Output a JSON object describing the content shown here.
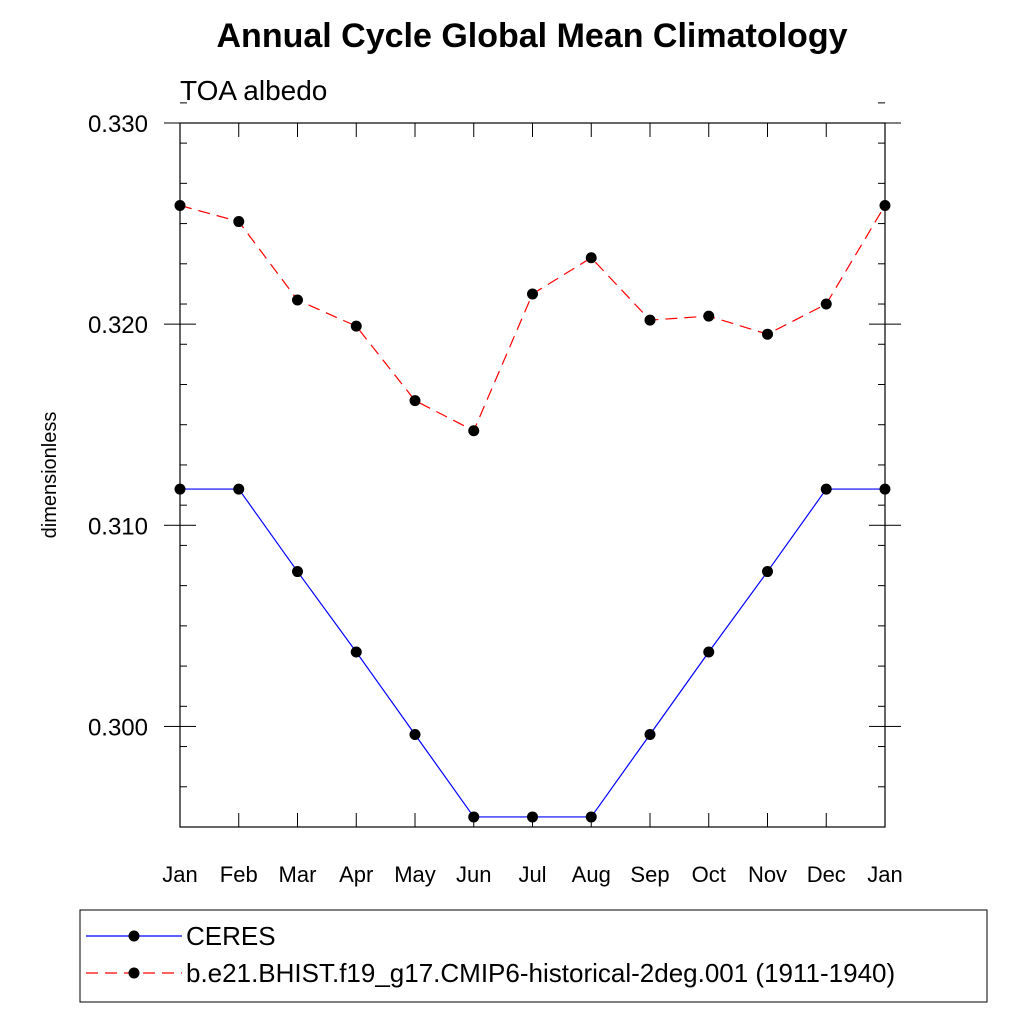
{
  "chart_data": {
    "type": "line",
    "title": "Annual Cycle Global Mean Climatology",
    "subtitle": "TOA albedo",
    "xlabel": "",
    "ylabel": "dimensionless",
    "categories": [
      "Jan",
      "Feb",
      "Mar",
      "Apr",
      "May",
      "Jun",
      "Jul",
      "Aug",
      "Sep",
      "Oct",
      "Nov",
      "Dec",
      "Jan"
    ],
    "ylim": [
      0.295,
      0.33
    ],
    "yticks": [
      {
        "value": 0.3,
        "label": "0.300"
      },
      {
        "value": 0.31,
        "label": "0.310"
      },
      {
        "value": 0.32,
        "label": "0.320"
      },
      {
        "value": 0.33,
        "label": "0.330"
      }
    ],
    "y_minor_step": 0.002,
    "grid": false,
    "legend_position": "bottom",
    "series": [
      {
        "name": "CERES",
        "color": "#0000ff",
        "line_style": "solid",
        "marker": "circle",
        "values": [
          0.3118,
          0.3118,
          0.3077,
          0.3037,
          0.2996,
          0.2955,
          0.2955,
          0.2955,
          0.2996,
          0.3037,
          0.3077,
          0.3118,
          0.3118
        ]
      },
      {
        "name": "b.e21.BHIST.f19_g17.CMIP6-historical-2deg.001 (1911-1940)",
        "color": "#ff0000",
        "line_style": "dashed",
        "marker": "circle",
        "values": [
          0.3259,
          0.3251,
          0.3212,
          0.3199,
          0.3162,
          0.3147,
          0.3215,
          0.3233,
          0.3202,
          0.3204,
          0.3195,
          0.321,
          0.3259
        ]
      }
    ]
  }
}
